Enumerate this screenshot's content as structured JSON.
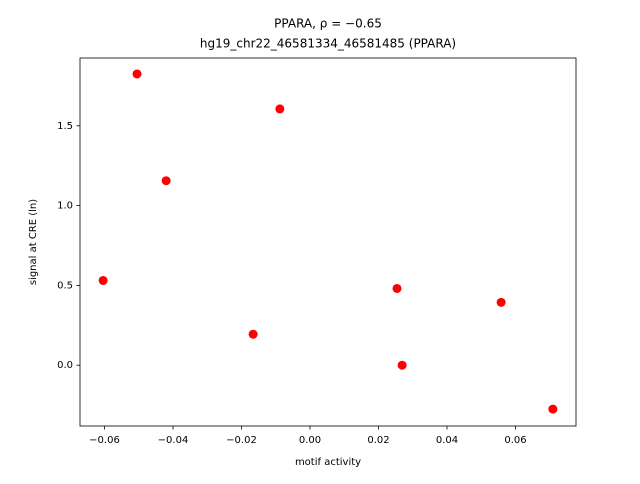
{
  "chart_data": {
    "type": "scatter",
    "title": "PPARA, ρ = −0.65",
    "subtitle": "hg19_chr22_46581334_46581485 (PPARA)",
    "xlabel": "motif activity",
    "ylabel": "signal at CRE (ln)",
    "color": "#ff0000",
    "x": [
      -0.0604,
      -0.0505,
      -0.042,
      -0.0166,
      -0.0088,
      0.0254,
      0.0269,
      0.0558,
      0.0709
    ],
    "values": [
      0.531,
      1.825,
      1.156,
      0.194,
      1.606,
      0.481,
      0.0,
      0.394,
      -0.275
    ],
    "xlim": [
      -0.06715,
      0.07766
    ],
    "ylim": [
      -0.381,
      1.925
    ],
    "xticks": [
      {
        "value": -0.06,
        "label": "−0.06"
      },
      {
        "value": -0.04,
        "label": "−0.04"
      },
      {
        "value": -0.02,
        "label": "−0.02"
      },
      {
        "value": 0,
        "label": "0.00"
      },
      0.02,
      0.04,
      0.06
    ],
    "yticks": [
      {
        "value": 0,
        "label": "0.0"
      },
      0.5,
      {
        "value": 1,
        "label": "1.0"
      },
      1.5
    ]
  }
}
